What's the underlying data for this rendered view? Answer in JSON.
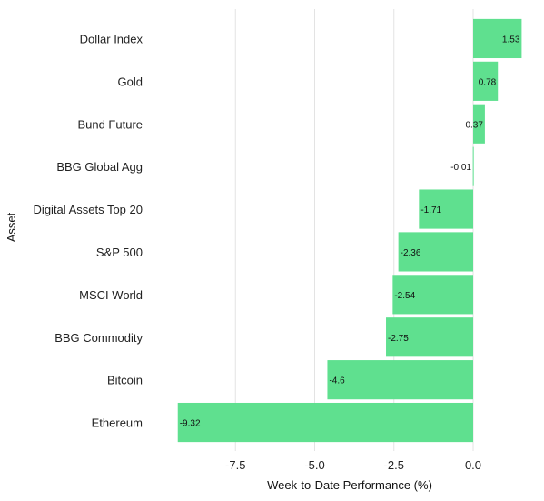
{
  "chart_data": {
    "type": "bar",
    "orientation": "horizontal",
    "categories": [
      "Dollar Index",
      "Gold",
      "Bund Future",
      "BBG Global Agg",
      "Digital Assets Top 20",
      "S&P 500",
      "MSCI World",
      "BBG Commodity",
      "Bitcoin",
      "Ethereum"
    ],
    "values": [
      1.53,
      0.78,
      0.37,
      -0.01,
      -1.71,
      -2.36,
      -2.54,
      -2.75,
      -4.6,
      -9.32
    ],
    "data_labels": [
      "1.53",
      "0.78",
      "0.37",
      "-0.01",
      "-1.71",
      "-2.36",
      "-2.54",
      "-2.75",
      "-4.6",
      "-9.32"
    ],
    "xlabel": "Week-to-Date Performance (%)",
    "ylabel": "Asset",
    "xlim": [
      -9.6,
      1.6
    ],
    "xticks": [
      -7.5,
      -5.0,
      -2.5,
      0.0
    ],
    "xtick_labels": [
      "-7.5",
      "-5.0",
      "-2.5",
      "0.0"
    ],
    "grid": "vertical",
    "bar_color": "#5FE08F",
    "grid_color": "#E3E3E3"
  }
}
